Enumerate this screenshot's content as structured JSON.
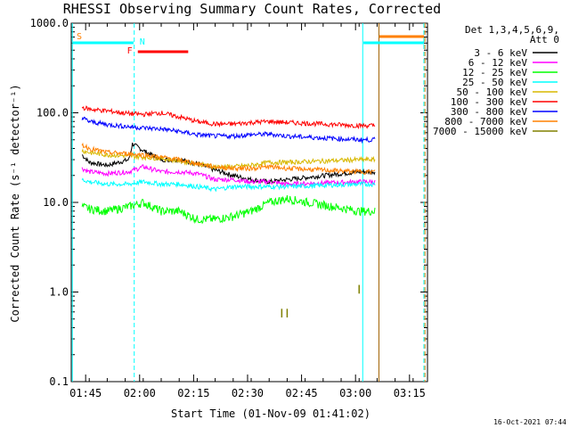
{
  "chart_data": {
    "type": "line",
    "title": "RHESSI Observing Summary Count Rates, Corrected",
    "xlabel": "Start Time (01-Nov-09 01:41:02)",
    "ylabel": "Corrected Count Rate (s⁻¹ detector⁻¹)",
    "y_scale": "log",
    "ylim": [
      0.1,
      1000
    ],
    "xlim_minutes": [
      0,
      99
    ],
    "x_ticks": [
      "01:45",
      "02:00",
      "02:15",
      "02:30",
      "02:45",
      "03:00",
      "03:15"
    ],
    "y_ticks": [
      "0.1",
      "1.0",
      "10.0",
      "100.0",
      "1000.0"
    ],
    "legend_header": [
      "Det 1,3,4,5,6,9,",
      "Att 0"
    ],
    "series": [
      {
        "name": "3 - 6 keV",
        "color": "#000000",
        "x": [
          3,
          5,
          10,
          16,
          17,
          20,
          25,
          30,
          35,
          40,
          45,
          50,
          55,
          60,
          80
        ],
        "y": [
          34,
          28,
          26,
          30,
          45,
          38,
          30,
          30,
          27,
          23,
          20,
          18,
          17,
          18,
          22
        ]
      },
      {
        "name": "6 - 12 keV",
        "color": "#ff00ff",
        "x": [
          3,
          5,
          10,
          16,
          20,
          25,
          30,
          35,
          40,
          45,
          50,
          55,
          60,
          80
        ],
        "y": [
          24,
          22,
          21,
          22,
          25,
          22,
          22,
          21,
          18,
          18,
          17,
          17,
          16,
          17
        ]
      },
      {
        "name": "12 - 25 keV",
        "color": "#00ff00",
        "x": [
          3,
          5,
          10,
          16,
          20,
          25,
          30,
          35,
          40,
          45,
          50,
          55,
          60,
          80
        ],
        "y": [
          9,
          8.5,
          8,
          9,
          10,
          8,
          8,
          6.5,
          6.5,
          7,
          8,
          10,
          11,
          8
        ]
      },
      {
        "name": "25 - 50 keV",
        "color": "#00ffff",
        "x": [
          3,
          5,
          10,
          16,
          20,
          25,
          30,
          35,
          40,
          45,
          50,
          55,
          60,
          80
        ],
        "y": [
          18,
          17,
          16,
          16,
          17,
          16,
          16,
          15,
          14,
          15,
          15,
          15,
          15,
          16
        ]
      },
      {
        "name": "50 - 100 keV",
        "color": "#d8b800",
        "x": [
          3,
          5,
          10,
          16,
          20,
          25,
          30,
          35,
          40,
          45,
          50,
          55,
          60,
          80
        ],
        "y": [
          38,
          36,
          34,
          33,
          32,
          31,
          29,
          27,
          25,
          25,
          26,
          28,
          28,
          30
        ]
      },
      {
        "name": "100 - 300 keV",
        "color": "#ff0000",
        "x": [
          3,
          5,
          10,
          16,
          20,
          25,
          30,
          35,
          40,
          45,
          50,
          55,
          60,
          80
        ],
        "y": [
          115,
          110,
          105,
          98,
          96,
          100,
          90,
          80,
          75,
          75,
          78,
          80,
          78,
          72
        ]
      },
      {
        "name": "300 - 800 keV",
        "color": "#0000ff",
        "x": [
          3,
          5,
          10,
          16,
          20,
          25,
          30,
          35,
          40,
          45,
          50,
          55,
          60,
          80
        ],
        "y": [
          88,
          80,
          74,
          70,
          68,
          66,
          62,
          57,
          55,
          55,
          57,
          58,
          55,
          50
        ]
      },
      {
        "name": "800 - 7000 keV",
        "color": "#ff8000",
        "x": [
          3,
          5,
          10,
          16,
          20,
          25,
          30,
          35,
          40,
          45,
          50,
          55,
          60,
          80
        ],
        "y": [
          44,
          40,
          36,
          35,
          34,
          32,
          30,
          27,
          25,
          24,
          24,
          25,
          24,
          22
        ]
      },
      {
        "name": "7000 - 15000 keV",
        "color": "#808000",
        "x": [
          58.5,
          60,
          80
        ],
        "y": [
          0.65,
          0.65,
          1.2
        ]
      }
    ],
    "flags": [
      {
        "label": "S",
        "color": "#ff8000"
      },
      {
        "label": "N",
        "color": "#00ffff"
      },
      {
        "label": "F",
        "color": "#ff0000"
      }
    ],
    "grid": false,
    "legend_position": "right"
  },
  "footer": {
    "timestamp": "16-Oct-2021 07:44"
  }
}
